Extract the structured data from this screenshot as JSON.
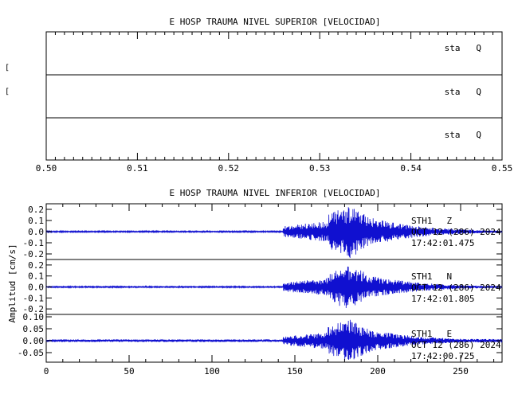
{
  "top": {
    "title": "E HOSP TRAUMA NIVEL SUPERIOR [VELOCIDAD]",
    "ylabel_fragment": "[",
    "xlim": [
      0.5,
      0.55
    ],
    "xticks": [
      "0.50",
      "0.51",
      "0.52",
      "0.53",
      "0.54",
      "0.55"
    ],
    "panels": [
      {
        "label": "sta   Q"
      },
      {
        "label": "sta   Q"
      },
      {
        "label": "sta   Q"
      }
    ]
  },
  "bottom": {
    "title": "E HOSP TRAUMA NIVEL INFERIOR [VELOCIDAD]",
    "ylabel": "Amplitud [cm/s]",
    "xlim": [
      0,
      275
    ],
    "xticks": [
      "0",
      "50",
      "100",
      "150",
      "200",
      "250"
    ],
    "waveform_color": "#1010d0",
    "panels": [
      {
        "station": "STH1",
        "component": "Z",
        "date": "OCT 12 (286) 2024",
        "time": "17:42:01.475",
        "ylim": [
          -0.25,
          0.25
        ],
        "ytick_values": [
          -0.2,
          -0.1,
          0.0,
          0.1,
          0.2
        ],
        "ytick_labels": [
          "-0.2",
          "-0.1",
          "0.0",
          "0.1",
          "0.2"
        ],
        "peak_amplitude": 0.24
      },
      {
        "station": "STH1",
        "component": "N",
        "date": "OCT 12 (286) 2024",
        "time": "17:42:01.805",
        "ylim": [
          -0.25,
          0.25
        ],
        "ytick_values": [
          -0.2,
          -0.1,
          0.0,
          0.1,
          0.2
        ],
        "ytick_labels": [
          "-0.2",
          "-0.1",
          "0.0",
          "0.1",
          "0.2"
        ],
        "peak_amplitude": 0.2
      },
      {
        "station": "STH1",
        "component": "E",
        "date": "OCT 12 (286) 2024",
        "time": "17:42:00.725",
        "ylim": [
          -0.09,
          0.11
        ],
        "ytick_values": [
          -0.05,
          0.0,
          0.05,
          0.1
        ],
        "ytick_labels": [
          "-0.05",
          "0.00",
          "0.05",
          "0.10"
        ],
        "peak_amplitude": 0.1
      }
    ]
  },
  "chart_data": [
    {
      "type": "line",
      "title": "E HOSP TRAUMA NIVEL SUPERIOR [VELOCIDAD]",
      "xlim": [
        0.5,
        0.55
      ],
      "series": [],
      "note_panels": [
        "sta   Q",
        "sta   Q",
        "sta   Q"
      ]
    },
    {
      "type": "line",
      "title": "E HOSP TRAUMA NIVEL INFERIOR [VELOCIDAD]",
      "ylabel": "Amplitud [cm/s]",
      "xlim": [
        0,
        275
      ],
      "series": [
        {
          "name": "STH1 Z",
          "onset_x": 143,
          "peak_x": 182,
          "peak_abs": 0.24,
          "end_x": 275
        },
        {
          "name": "STH1 N",
          "onset_x": 143,
          "peak_x": 182,
          "peak_abs": 0.2,
          "end_x": 275
        },
        {
          "name": "STH1 E",
          "onset_x": 143,
          "peak_x": 182,
          "peak_abs": 0.1,
          "end_x": 275
        }
      ]
    }
  ]
}
